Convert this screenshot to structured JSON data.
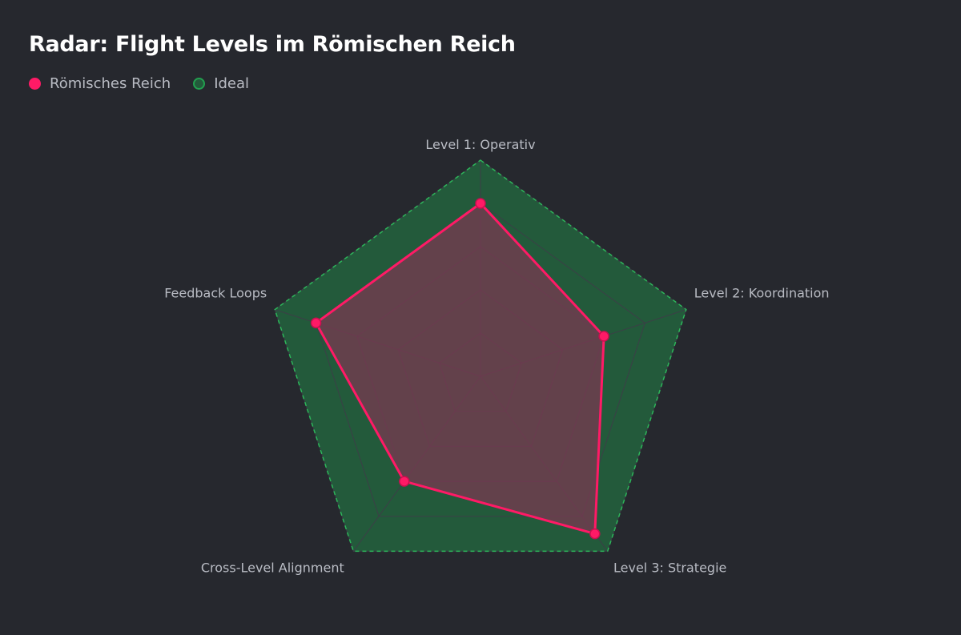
{
  "title": "Radar: Flight Levels im Römischen Reich",
  "legend": [
    {
      "label": "Römisches Reich",
      "color": "#ff1a66"
    },
    {
      "label": "Ideal",
      "color": "#22a04f"
    }
  ],
  "colors": {
    "background": "#26282e",
    "grid": "#3c3f47",
    "series_reich_stroke": "#ff1a66",
    "series_reich_fill": "#7a3a52",
    "series_ideal_stroke": "#2db65a",
    "series_ideal_fill": "#235a3b"
  },
  "chart_data": {
    "type": "radar",
    "title": "Radar: Flight Levels im Römischen Reich",
    "axes": [
      "Level 1: Operativ",
      "Level 2: Koordination",
      "Level 3: Strategie",
      "Cross-Level Alignment",
      "Feedback Loops"
    ],
    "range": [
      0,
      5
    ],
    "grid_levels": 5,
    "series": [
      {
        "name": "Römisches Reich",
        "values": [
          4,
          3,
          4.5,
          3,
          4
        ]
      },
      {
        "name": "Ideal",
        "values": [
          5,
          5,
          5,
          5,
          5
        ]
      }
    ],
    "legend_position": "top-left"
  }
}
